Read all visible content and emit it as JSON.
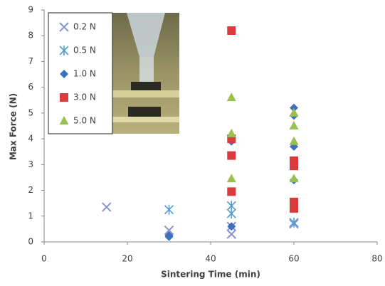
{
  "chart_data": {
    "type": "scatter",
    "x_label": "Sintering Time (min)",
    "y_label": "Max Force (N)",
    "xlim": [
      0,
      80
    ],
    "xticks": [
      0,
      20,
      40,
      60,
      80
    ],
    "ylim": [
      0,
      9
    ],
    "yticks": [
      0,
      1,
      2,
      3,
      4,
      5,
      6,
      7,
      8,
      9
    ],
    "grid": false,
    "legend": "upper-left",
    "series": [
      {
        "name": "0.2 N",
        "color": "#8b93cf",
        "marker": "x",
        "x": [
          15,
          30,
          45,
          45,
          60
        ],
        "values": [
          1.35,
          0.45,
          0.3,
          0.6,
          0.7
        ]
      },
      {
        "name": "0.5 N",
        "color": "#4f9ed1",
        "marker": "asterisk",
        "x": [
          30,
          45,
          45,
          60
        ],
        "values": [
          1.25,
          1.4,
          1.1,
          0.75
        ]
      },
      {
        "name": "1.0 N",
        "color": "#3f6fbf",
        "marker": "diamond",
        "x": [
          30,
          30,
          45,
          45,
          60,
          60,
          60,
          60
        ],
        "values": [
          0.25,
          0.2,
          0.6,
          3.9,
          5.2,
          4.9,
          3.7,
          2.4
        ]
      },
      {
        "name": "3.0 N",
        "color": "#d93c3c",
        "marker": "square",
        "x": [
          45,
          45,
          45,
          45,
          60,
          60,
          60,
          60
        ],
        "values": [
          8.2,
          4.0,
          3.35,
          1.95,
          3.15,
          2.95,
          1.55,
          1.3
        ]
      },
      {
        "name": "5.0 N",
        "color": "#98c14f",
        "marker": "triangle",
        "x": [
          45,
          45,
          45,
          60,
          60,
          60,
          60
        ],
        "values": [
          5.6,
          4.2,
          2.45,
          5.0,
          4.5,
          3.9,
          2.45
        ]
      }
    ]
  }
}
